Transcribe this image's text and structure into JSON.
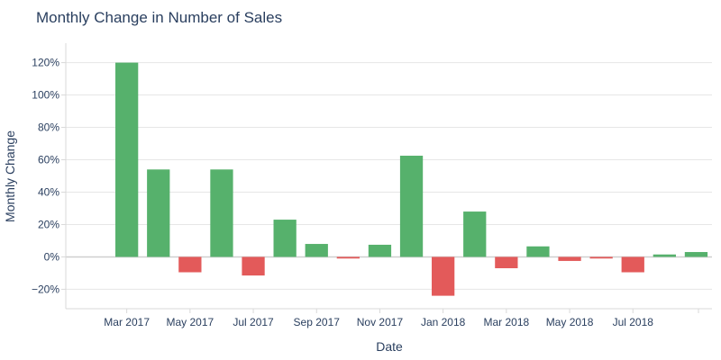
{
  "chart_data": {
    "type": "bar",
    "title": "Monthly Change in Number of Sales",
    "xlabel": "Date",
    "ylabel": "Monthly Change",
    "categories": [
      "Feb 2017",
      "Mar 2017",
      "Apr 2017",
      "May 2017",
      "Jun 2017",
      "Jul 2017",
      "Aug 2017",
      "Sep 2017",
      "Oct 2017",
      "Nov 2017",
      "Dec 2017",
      "Jan 2018",
      "Feb 2018",
      "Mar 2018",
      "Apr 2018",
      "May 2018",
      "Jun 2018",
      "Jul 2018",
      "Aug 2018",
      "Sep 2018"
    ],
    "values": [
      null,
      120,
      54,
      -9.5,
      54,
      -11.5,
      23,
      8,
      -1,
      7.5,
      62.5,
      -24,
      28,
      -7,
      6.5,
      -2.5,
      -1,
      -9.5,
      1.5,
      3
    ],
    "ylim": [
      -32,
      132
    ],
    "yticks": [
      -20,
      0,
      20,
      40,
      60,
      80,
      100,
      120
    ],
    "ytick_labels": [
      "−20%",
      "0%",
      "20%",
      "40%",
      "60%",
      "80%",
      "100%",
      "120%"
    ],
    "xtick_labels": [
      "Mar 2017",
      "May 2017",
      "Jul 2017",
      "Sep 2017",
      "Nov 2017",
      "Jan 2018",
      "Mar 2018",
      "May 2018",
      "Jul 2018"
    ],
    "xtick_categories": [
      "Mar 2017",
      "May 2017",
      "Jul 2017",
      "Sep 2017",
      "Nov 2017",
      "Jan 2018",
      "Mar 2018",
      "May 2018",
      "Jul 2018"
    ],
    "colors": {
      "positive": "#56b16c",
      "negative": "#e35a5a"
    },
    "grid": true,
    "legend": "none"
  }
}
